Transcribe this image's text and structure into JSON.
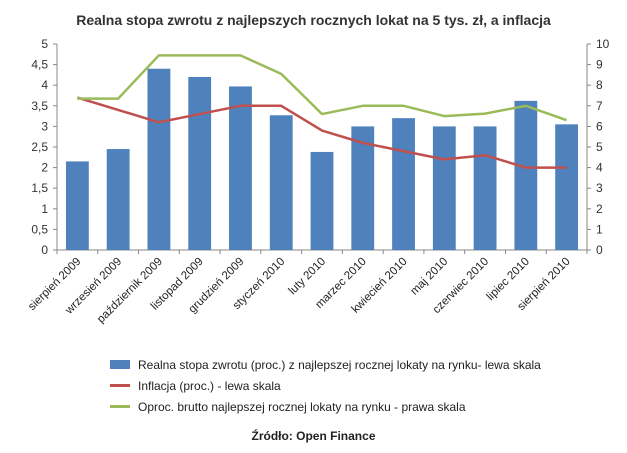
{
  "chart_data": {
    "type": "bar",
    "title": "Realna stopa zwrotu z najlepszych rocznych lokat na 5 tys. zł, a inflacja",
    "categories": [
      "sierpień 2009",
      "wrzesień 2009",
      "październik 2009",
      "listopad 2009",
      "grudzień 2009",
      "styczeń 2010",
      "luty 2010",
      "marzec 2010",
      "kwiecień 2010",
      "maj 2010",
      "czerwiec 2010",
      "lipiec 2010",
      "sierpień 2010"
    ],
    "series": [
      {
        "name": "Realna stopa zwrotu (proc.) z najlepszej rocznej lokaty na rynku- lewa skala",
        "type": "bar",
        "axis": "left",
        "color": "#4F81BD",
        "values": [
          2.15,
          2.45,
          4.4,
          4.2,
          3.97,
          3.27,
          2.38,
          3.0,
          3.2,
          3.0,
          3.0,
          3.62,
          3.05
        ]
      },
      {
        "name": "Inflacja (proc.) - lewa skala",
        "type": "line",
        "axis": "left",
        "color": "#C0504D",
        "values": [
          3.7,
          3.4,
          3.1,
          3.3,
          3.5,
          3.5,
          2.9,
          2.6,
          2.4,
          2.2,
          2.3,
          2.0,
          2.0
        ]
      },
      {
        "name": "Oproc. brutto najlepszej rocznej lokaty na rynku - prawa skala",
        "type": "line",
        "axis": "right",
        "color": "#9BBB59",
        "values": [
          7.35,
          7.35,
          9.45,
          9.45,
          9.45,
          8.55,
          6.6,
          7.0,
          7.0,
          6.5,
          6.62,
          7.0,
          6.3
        ]
      }
    ],
    "y_left": {
      "min": 0,
      "max": 5,
      "ticks": [
        "0",
        "0,5",
        "1",
        "1,5",
        "2",
        "2,5",
        "3",
        "3,5",
        "4",
        "4,5",
        "5"
      ]
    },
    "y_right": {
      "min": 0,
      "max": 10,
      "ticks": [
        "0",
        "1",
        "2",
        "3",
        "4",
        "5",
        "6",
        "7",
        "8",
        "9",
        "10"
      ]
    },
    "grid": false,
    "legend_position": "bottom"
  },
  "source": "Źródło: Open Finance"
}
